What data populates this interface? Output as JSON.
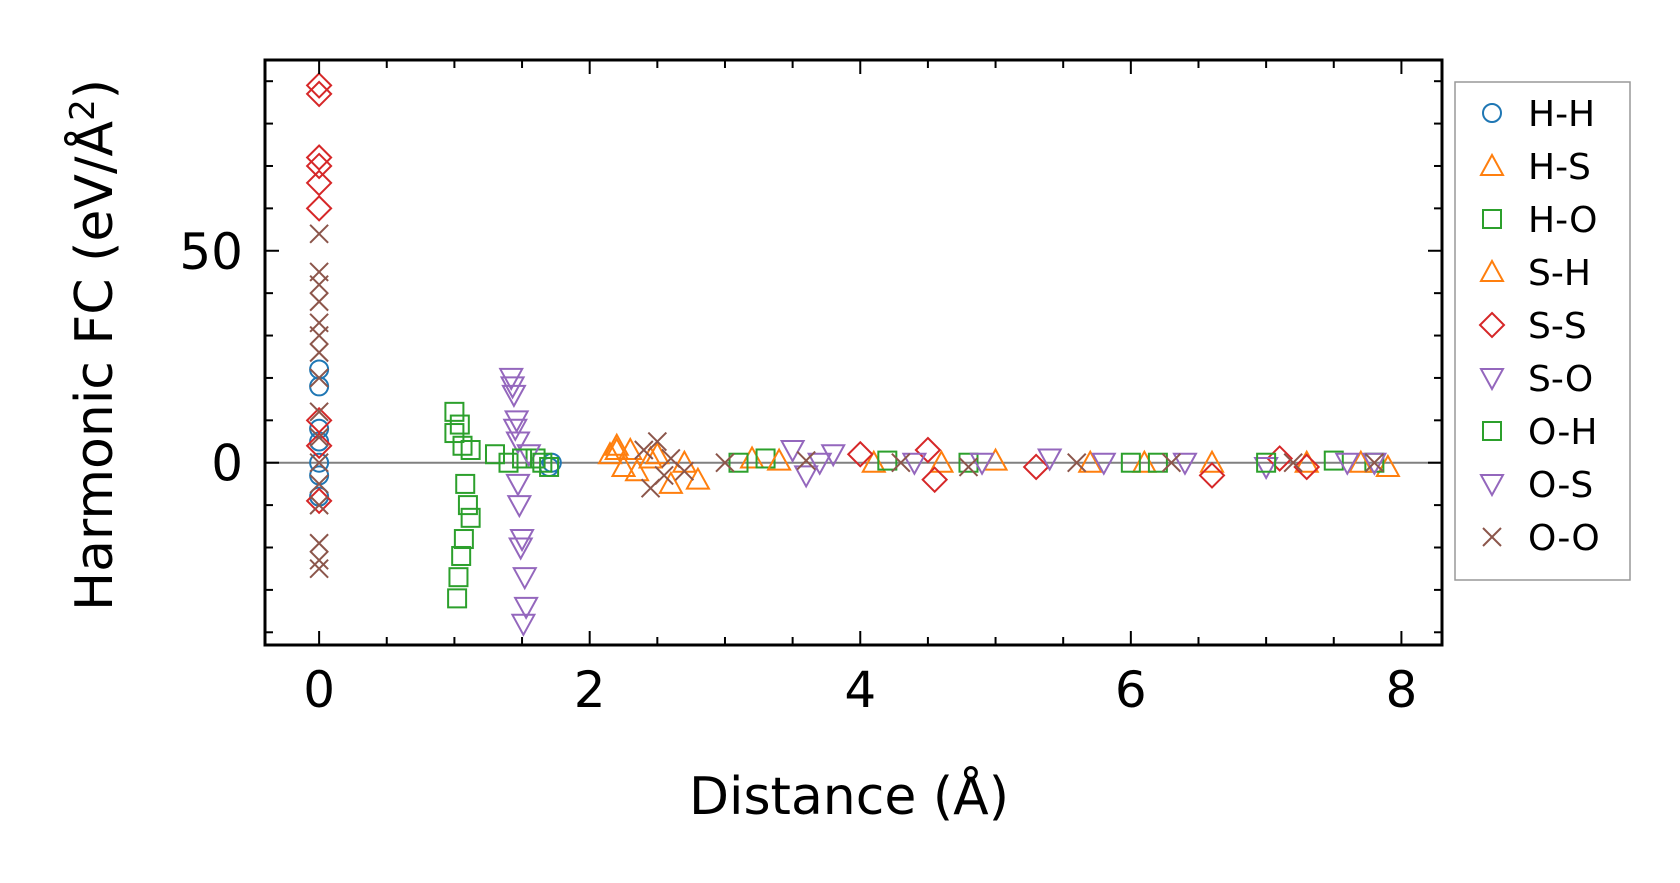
{
  "chart_data": {
    "type": "scatter",
    "title": "",
    "xlabel": "Distance (Å)",
    "ylabel_main": "Harmonic FC (eV/Å",
    "ylabel_sup": "2",
    "ylabel_close": ")",
    "xlim": [
      -0.4,
      8.3
    ],
    "ylim": [
      -43,
      95
    ],
    "xticks": [
      0,
      2,
      4,
      6,
      8
    ],
    "xtick_labels": [
      "0",
      "2",
      "4",
      "6",
      "8"
    ],
    "yticks": [
      0,
      50
    ],
    "ytick_labels": [
      "0",
      "50"
    ],
    "x_minor_step": 0.5,
    "y_minor_step": 10,
    "zero_line": true,
    "grid": false,
    "legend_position": "outside-right",
    "series": [
      {
        "name": "H-H",
        "marker": "circle",
        "color": "#1f77b4",
        "x": [
          0,
          0,
          0,
          0,
          0,
          0,
          0,
          1.7,
          1.72
        ],
        "y": [
          22,
          18,
          5,
          0,
          -3,
          8,
          -8,
          -1,
          0
        ]
      },
      {
        "name": "H-S",
        "marker": "triangle-up",
        "color": "#ff7f0e",
        "x": [
          2.15,
          2.2,
          2.25,
          2.3,
          2.45,
          2.6,
          2.7,
          3.2,
          4.1,
          5.0,
          6.1,
          7.3,
          7.9
        ],
        "y": [
          2,
          4,
          -1,
          3,
          1,
          -5,
          0,
          1,
          0,
          0.5,
          0,
          0,
          -1
        ]
      },
      {
        "name": "H-O",
        "marker": "square",
        "color": "#2ca02c",
        "x": [
          1.0,
          1.0,
          1.02,
          1.03,
          1.05,
          1.07,
          1.1,
          1.12,
          1.3,
          1.4,
          1.6,
          1.7,
          3.3,
          4.8,
          6.2,
          7.5,
          7.8
        ],
        "y": [
          12,
          7,
          -32,
          -27,
          -22,
          -18,
          -10,
          3,
          2,
          0,
          1,
          -1,
          1,
          0,
          0,
          0.5,
          0
        ]
      },
      {
        "name": "S-H",
        "marker": "triangle-up",
        "color": "#ff7f0e",
        "x": [
          2.2,
          2.35,
          2.5,
          2.8,
          3.4,
          4.6,
          5.7,
          6.6,
          7.7
        ],
        "y": [
          3,
          -2,
          2,
          -4,
          0.5,
          0,
          0,
          0,
          0
        ]
      },
      {
        "name": "S-S",
        "marker": "diamond",
        "color": "#d62728",
        "x": [
          0,
          0,
          0,
          0,
          0,
          0,
          0,
          0,
          0,
          4.0,
          4.5,
          4.55,
          5.3,
          6.6,
          7.1,
          7.3
        ],
        "y": [
          89,
          87,
          72,
          70,
          66,
          60,
          10,
          4,
          -9,
          2,
          3,
          -4,
          -1,
          -3,
          1,
          -1
        ]
      },
      {
        "name": "S-O",
        "marker": "triangle-down",
        "color": "#9467bd",
        "x": [
          1.42,
          1.44,
          1.46,
          1.47,
          1.48,
          1.5,
          1.52,
          1.53,
          1.55,
          3.5,
          3.6,
          3.8,
          4.4,
          5.4,
          5.8,
          7.0,
          7.6
        ],
        "y": [
          20,
          16,
          10,
          5,
          -10,
          -18,
          -27,
          -34,
          2,
          3,
          -3,
          2,
          0,
          1,
          0,
          -1,
          0
        ]
      },
      {
        "name": "O-H",
        "marker": "square",
        "color": "#2ca02c",
        "x": [
          1.04,
          1.06,
          1.08,
          1.12,
          1.5,
          1.65,
          3.1,
          4.2,
          6.0,
          7.0
        ],
        "y": [
          9,
          4,
          -5,
          -13,
          1,
          0,
          0,
          0.5,
          0,
          0
        ]
      },
      {
        "name": "O-S",
        "marker": "triangle-down",
        "color": "#9467bd",
        "x": [
          1.43,
          1.45,
          1.47,
          1.49,
          1.51,
          3.7,
          4.9,
          6.4,
          7.8
        ],
        "y": [
          18,
          8,
          -5,
          -20,
          -38,
          0,
          0,
          0,
          0
        ]
      },
      {
        "name": "O-O",
        "marker": "x",
        "color": "#8c564b",
        "x": [
          0,
          0,
          0,
          0,
          0,
          0,
          0,
          0,
          0,
          0,
          0,
          0,
          0,
          0,
          0,
          0,
          2.4,
          2.45,
          2.5,
          2.55,
          2.6,
          2.7,
          3.0,
          3.6,
          4.3,
          4.8,
          5.6,
          6.3,
          7.2,
          7.8
        ],
        "y": [
          54,
          45,
          42,
          38,
          33,
          30,
          26,
          20,
          12,
          6,
          0,
          -5,
          -10,
          -19,
          -23,
          -25,
          3,
          -6,
          5,
          -3,
          1,
          -2,
          0,
          0.5,
          0,
          -1,
          0,
          0,
          0,
          0
        ]
      }
    ]
  }
}
